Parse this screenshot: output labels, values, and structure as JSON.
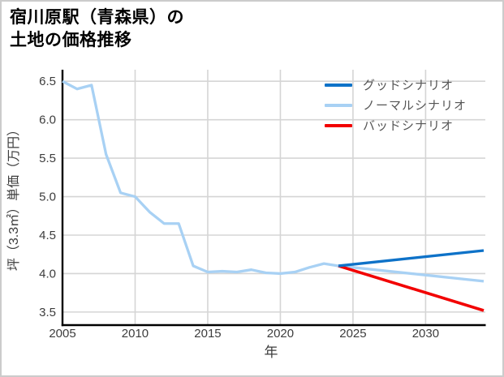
{
  "title": {
    "line1": "宿川原駅（青森県）の",
    "line2": "土地の価格推移"
  },
  "colors": {
    "good": "#0e72c8",
    "normal": "#a8d1f4",
    "bad": "#f20000",
    "grid": "#d5d5d5",
    "axis": "#000000",
    "tick_label": "#3d3d3d",
    "axis_label": "#3d3d3d",
    "legend_text": "#555555",
    "frame_border": "#cccccc"
  },
  "chart_data": {
    "type": "line",
    "title": "宿川原駅（青森県）の土地の価格推移",
    "xlabel": "年",
    "ylabel": "坪（3.3㎡）単価（万円）",
    "xlim": [
      2005,
      2034
    ],
    "ylim": [
      3.33,
      6.65
    ],
    "x_ticks": [
      "2005",
      "2010",
      "2015",
      "2020",
      "2025",
      "2030"
    ],
    "y_ticks": [
      "6.5",
      "6.0",
      "5.5",
      "5.0",
      "4.5",
      "4.0",
      "3.5"
    ],
    "grid": true,
    "legend_position": "top-right",
    "series": [
      {
        "name": "グッドシナリオ",
        "color_key": "good",
        "x": [
          2024,
          2034
        ],
        "values": [
          4.1,
          4.3
        ]
      },
      {
        "name": "ノーマルシナリオ",
        "color_key": "normal",
        "x": [
          2005,
          2006,
          2007,
          2008,
          2009,
          2010,
          2011,
          2012,
          2013,
          2014,
          2015,
          2016,
          2017,
          2018,
          2019,
          2020,
          2021,
          2022,
          2023,
          2024,
          2034
        ],
        "values": [
          6.5,
          6.4,
          6.45,
          5.55,
          5.05,
          5.0,
          4.8,
          4.65,
          4.65,
          4.1,
          4.02,
          4.03,
          4.02,
          4.05,
          4.01,
          4.0,
          4.02,
          4.08,
          4.13,
          4.1,
          3.9
        ]
      },
      {
        "name": "バッドシナリオ",
        "color_key": "bad",
        "x": [
          2024,
          2034
        ],
        "values": [
          4.1,
          3.52
        ]
      }
    ],
    "draw_order": [
      1,
      2,
      0
    ]
  }
}
